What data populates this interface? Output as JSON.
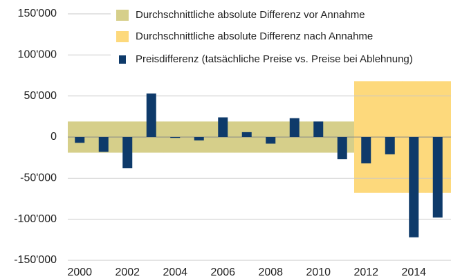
{
  "chart_data": {
    "type": "bar",
    "categories": [
      "2000",
      null,
      "2002",
      null,
      "2004",
      null,
      "2006",
      null,
      "2008",
      null,
      "2010",
      null,
      "2012",
      null,
      "2014",
      null
    ],
    "series": [
      {
        "name": "Durchschnittliche absolute Differenz vor Annahme",
        "type": "band",
        "color": "#d6cf8a",
        "values": [
          19000,
          19000,
          19000,
          19000,
          19000,
          19000,
          19000,
          19000,
          19000,
          19000,
          19000,
          19000,
          null,
          null,
          null,
          null
        ]
      },
      {
        "name": "Durchschnittliche absolute Differenz nach Annahme",
        "type": "band",
        "color": "#fdd97c",
        "values": [
          null,
          null,
          null,
          null,
          null,
          null,
          null,
          null,
          null,
          null,
          null,
          null,
          68000,
          68000,
          68000,
          68000
        ]
      },
      {
        "name": "Preisdifferenz (tatsächliche Preise vs. Preise bei Ablehnung)",
        "type": "bar",
        "color": "#0e3a6a",
        "values": [
          -7000,
          -18000,
          -38000,
          53000,
          -1000,
          -4000,
          24000,
          6000,
          -8000,
          23000,
          19000,
          -27000,
          -32000,
          -21000,
          -122000,
          -98000
        ]
      }
    ],
    "ylim": [
      -150000,
      150000
    ],
    "yticks": [
      {
        "value": -150000,
        "label": "-150'000"
      },
      {
        "value": -100000,
        "label": "-100'000"
      },
      {
        "value": -50000,
        "label": "-50'000"
      },
      0,
      {
        "value": 50000,
        "label": "50'000"
      },
      {
        "value": 100000,
        "label": "100'000"
      },
      {
        "value": 150000,
        "label": "150'000"
      }
    ],
    "grid": true,
    "legend": "top"
  }
}
